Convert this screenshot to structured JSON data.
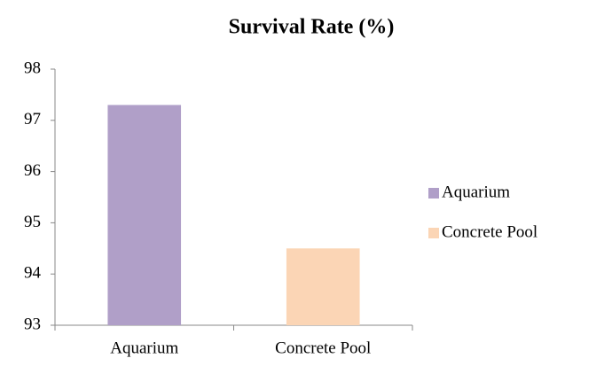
{
  "chart_data": {
    "type": "bar",
    "title": "Survival Rate (%)",
    "categories": [
      "Aquarium",
      "Concrete Pool"
    ],
    "values": [
      97.3,
      94.5
    ],
    "colors": [
      "#b09fc8",
      "#fbd5b5"
    ],
    "ylim": [
      93,
      98
    ],
    "yticks": [
      93,
      94,
      95,
      96,
      97,
      98
    ],
    "grid": false,
    "legend": "right"
  }
}
